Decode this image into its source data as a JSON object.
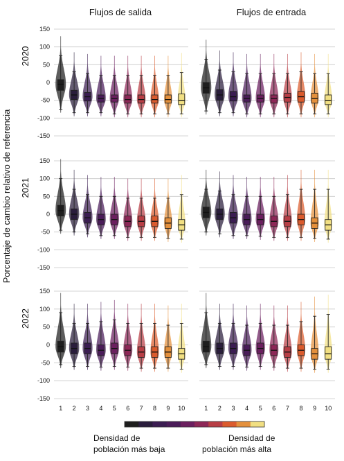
{
  "chart_data": {
    "type": "violin",
    "column_titles": [
      "Flujos de salida",
      "Flujos de entrada"
    ],
    "row_titles": [
      "2020",
      "2021",
      "2022"
    ],
    "ylabel": "Porcentaje de cambio relativo de referencia",
    "ylim": [
      -150,
      150
    ],
    "yticks": [
      150,
      100,
      50,
      0,
      -50,
      -100,
      -150
    ],
    "categories": [
      "1",
      "2",
      "3",
      "4",
      "5",
      "6",
      "7",
      "8",
      "9",
      "10"
    ],
    "grid": true,
    "colors": [
      "#1e1e1e",
      "#2a1d3c",
      "#3b1d52",
      "#4a1c59",
      "#6b1f5f",
      "#8d2757",
      "#b83e45",
      "#db5b2d",
      "#e4903c",
      "#f1df82"
    ],
    "colorbar": {
      "low_label_line1": "Densidad de",
      "low_label_line2": "población más baja",
      "high_label_line1": "Densidad de",
      "high_label_line2": "población más alta"
    },
    "panels": [
      {
        "row": "2020",
        "column": "Flujos de salida",
        "median": [
          -5,
          -35,
          -40,
          -45,
          -45,
          -48,
          -48,
          -48,
          -48,
          -50
        ],
        "q1": [
          -22,
          -48,
          -52,
          -55,
          -55,
          -58,
          -58,
          -58,
          -58,
          -62
        ],
        "q3": [
          8,
          -22,
          -28,
          -35,
          -35,
          -35,
          -35,
          -35,
          -35,
          -32
        ],
        "whisker_low": [
          -75,
          -85,
          -85,
          -85,
          -88,
          -88,
          -88,
          -88,
          -88,
          -88
        ],
        "whisker_high": [
          75,
          30,
          25,
          20,
          20,
          20,
          20,
          20,
          20,
          28
        ]
      },
      {
        "row": "2020",
        "column": "Flujos de entrada",
        "median": [
          -15,
          -35,
          -40,
          -45,
          -45,
          -45,
          -42,
          -40,
          -45,
          -50
        ],
        "q1": [
          -30,
          -50,
          -52,
          -55,
          -55,
          -58,
          -55,
          -55,
          -58,
          -62
        ],
        "q3": [
          0,
          -20,
          -25,
          -35,
          -35,
          -35,
          -30,
          -25,
          -30,
          -35
        ],
        "whisker_low": [
          -80,
          -85,
          -85,
          -88,
          -88,
          -88,
          -88,
          -88,
          -88,
          -88
        ],
        "whisker_high": [
          65,
          35,
          30,
          25,
          25,
          25,
          25,
          30,
          25,
          25
        ]
      },
      {
        "row": "2021",
        "column": "Flujos de salida",
        "median": [
          10,
          0,
          -10,
          -15,
          -15,
          -20,
          -20,
          -20,
          -25,
          -30
        ],
        "q1": [
          -5,
          -15,
          -25,
          -30,
          -30,
          -35,
          -35,
          -35,
          -40,
          -45
        ],
        "q3": [
          25,
          15,
          5,
          0,
          0,
          -5,
          -5,
          -5,
          -10,
          -15
        ],
        "whisker_low": [
          -45,
          -50,
          -55,
          -60,
          -60,
          -65,
          -65,
          -65,
          -68,
          -70
        ],
        "whisker_high": [
          100,
          70,
          55,
          50,
          50,
          45,
          45,
          45,
          45,
          55
        ]
      },
      {
        "row": "2021",
        "column": "Flujos de entrada",
        "median": [
          5,
          0,
          -10,
          -15,
          -15,
          -20,
          -20,
          -15,
          -25,
          -30
        ],
        "q1": [
          -10,
          -15,
          -25,
          -30,
          -30,
          -35,
          -35,
          -30,
          -40,
          -45
        ],
        "q3": [
          20,
          15,
          5,
          0,
          0,
          -5,
          -5,
          0,
          -10,
          -15
        ],
        "whisker_low": [
          -50,
          -55,
          -60,
          -60,
          -62,
          -65,
          -65,
          -65,
          -68,
          -70
        ],
        "whisker_high": [
          70,
          65,
          55,
          50,
          50,
          50,
          55,
          70,
          70,
          70
        ]
      },
      {
        "row": "2022",
        "column": "Flujos de salida",
        "median": [
          -5,
          -10,
          -10,
          -15,
          -10,
          -15,
          -20,
          -20,
          -20,
          -25
        ],
        "q1": [
          -20,
          -25,
          -25,
          -30,
          -25,
          -30,
          -35,
          -35,
          -35,
          -40
        ],
        "q3": [
          10,
          5,
          5,
          0,
          5,
          0,
          -5,
          -5,
          -5,
          -10
        ],
        "whisker_low": [
          -55,
          -60,
          -60,
          -62,
          -60,
          -62,
          -65,
          -65,
          -65,
          -68
        ],
        "whisker_high": [
          90,
          60,
          60,
          65,
          70,
          60,
          60,
          60,
          55,
          60
        ]
      },
      {
        "row": "2022",
        "column": "Flujos de entrada",
        "median": [
          -5,
          -10,
          -10,
          -15,
          -10,
          -15,
          -20,
          -15,
          -25,
          -25
        ],
        "q1": [
          -20,
          -25,
          -25,
          -30,
          -25,
          -30,
          -35,
          -30,
          -40,
          -40
        ],
        "q3": [
          10,
          5,
          5,
          0,
          5,
          0,
          -5,
          0,
          -10,
          -5
        ],
        "whisker_low": [
          -55,
          -60,
          -60,
          -62,
          -60,
          -62,
          -65,
          -65,
          -68,
          -68
        ],
        "whisker_high": [
          90,
          60,
          60,
          55,
          60,
          55,
          55,
          65,
          80,
          85
        ]
      }
    ]
  }
}
